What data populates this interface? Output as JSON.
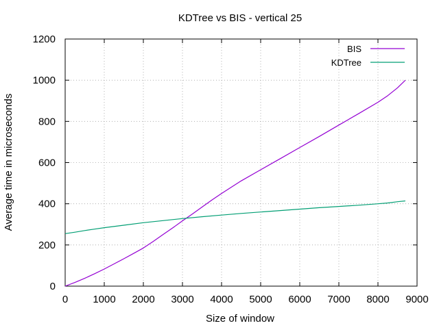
{
  "chart_data": {
    "type": "line",
    "title": "KDTree vs BIS - vertical 25",
    "xlabel": "Size of window",
    "ylabel": "Average time in microseconds",
    "xlim": [
      0,
      9000
    ],
    "ylim": [
      0,
      1200
    ],
    "xticks": [
      0,
      1000,
      2000,
      3000,
      4000,
      5000,
      6000,
      7000,
      8000,
      9000
    ],
    "yticks": [
      0,
      200,
      400,
      600,
      800,
      1000,
      1200
    ],
    "grid": true,
    "legend_position": "top-right",
    "series": [
      {
        "name": "BIS",
        "color": "#9400d3",
        "x": [
          0,
          250,
          500,
          750,
          1000,
          1250,
          1500,
          1750,
          2000,
          2250,
          2500,
          2750,
          3000,
          3250,
          3500,
          3750,
          4000,
          4500,
          5000,
          5500,
          6000,
          6500,
          7000,
          7500,
          8000,
          8250,
          8500,
          8700
        ],
        "y": [
          0,
          18,
          38,
          60,
          83,
          108,
          133,
          159,
          185,
          217,
          250,
          283,
          317,
          350,
          384,
          418,
          450,
          511,
          565,
          619,
          673,
          727,
          782,
          837,
          893,
          925,
          963,
          1000
        ]
      },
      {
        "name": "KDTree",
        "color": "#009e73",
        "x": [
          0,
          250,
          500,
          750,
          1000,
          1500,
          2000,
          2500,
          3000,
          3500,
          4000,
          4500,
          5000,
          5500,
          6000,
          6500,
          7000,
          7500,
          8000,
          8250,
          8500,
          8700
        ],
        "y": [
          255,
          262,
          270,
          277,
          284,
          296,
          308,
          318,
          328,
          337,
          345,
          353,
          360,
          367,
          374,
          381,
          387,
          393,
          400,
          404,
          410,
          414
        ]
      }
    ]
  }
}
